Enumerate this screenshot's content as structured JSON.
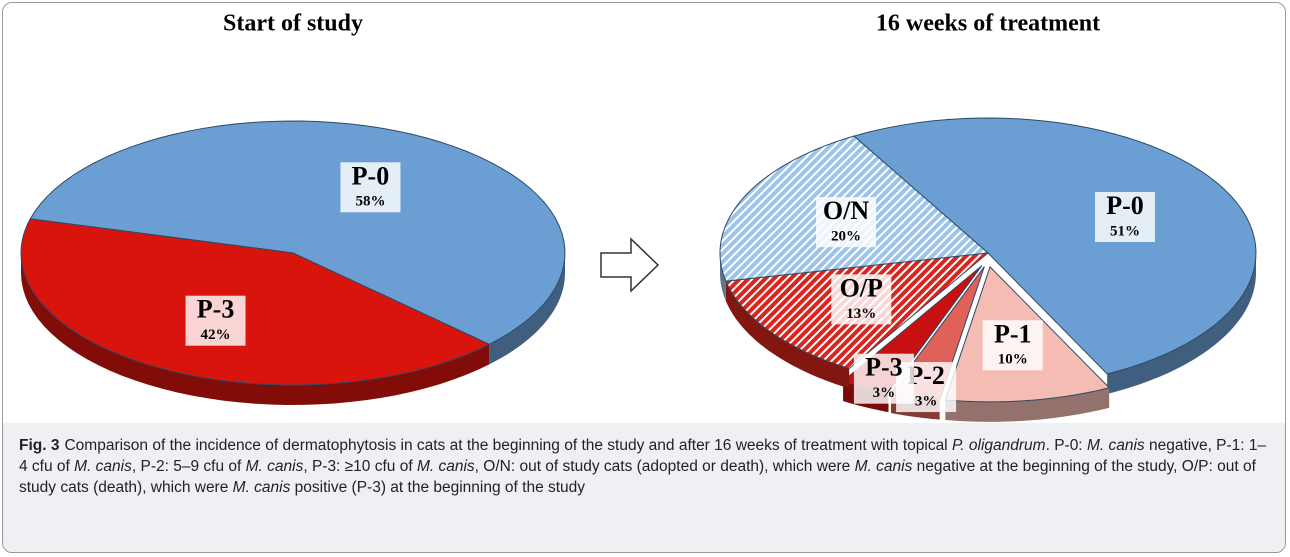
{
  "chart_data": [
    {
      "type": "pie",
      "title": "Start of study",
      "categories": [
        "P-0",
        "P-3"
      ],
      "values": [
        58,
        42
      ],
      "value_labels": [
        "58%",
        "42%"
      ],
      "colors": [
        "#6b9fd3",
        "#d8140c"
      ],
      "patterned": [
        false,
        false
      ],
      "explode": [
        0,
        0
      ]
    },
    {
      "type": "pie",
      "title": "16 weeks of treatment",
      "categories": [
        "P-0",
        "P-1",
        "P-2",
        "P-3",
        "O/P",
        "O/N"
      ],
      "values": [
        51,
        10,
        3,
        3,
        13,
        20
      ],
      "value_labels": [
        "51%",
        "10%",
        "3%",
        "3%",
        "13%",
        "20%"
      ],
      "colors": [
        "#6b9fd3",
        "#f5bcb4",
        "#e0605a",
        "#c81010",
        "#d8261e",
        "#9cc3e8"
      ],
      "patterned": [
        false,
        false,
        false,
        false,
        true,
        true
      ],
      "explode": [
        0,
        1,
        1,
        1,
        0,
        0
      ]
    }
  ],
  "caption": {
    "label": "Fig. 3",
    "segments": [
      {
        "text": "Comparison of the incidence of dermatophytosis in cats at the beginning of the study and after 16 weeks of treatment with topical "
      },
      {
        "text": "P. oligandrum",
        "italic": true
      },
      {
        "text": ". P-0: "
      },
      {
        "text": "M. canis",
        "italic": true
      },
      {
        "text": " negative, P-1: 1–4 cfu of "
      },
      {
        "text": "M. canis",
        "italic": true
      },
      {
        "text": ", P-2: 5–9 cfu of "
      },
      {
        "text": "M. canis",
        "italic": true
      },
      {
        "text": ", P-3: ≥10 cfu of "
      },
      {
        "text": "M. canis",
        "italic": true
      },
      {
        "text": ", O/N: out of study cats (adopted or death), which were "
      },
      {
        "text": "M. canis",
        "italic": true
      },
      {
        "text": " negative at the beginning of the study, O/P: out of study cats (death), which were "
      },
      {
        "text": "M. canis",
        "italic": true
      },
      {
        "text": " positive (P-3) at the beginning of the study"
      }
    ]
  }
}
